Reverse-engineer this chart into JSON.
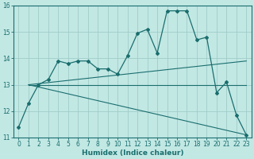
{
  "xlabel": "Humidex (Indice chaleur)",
  "xlim": [
    -0.5,
    23.5
  ],
  "ylim": [
    11,
    16
  ],
  "yticks": [
    11,
    12,
    13,
    14,
    15,
    16
  ],
  "xticks": [
    0,
    1,
    2,
    3,
    4,
    5,
    6,
    7,
    8,
    9,
    10,
    11,
    12,
    13,
    14,
    15,
    16,
    17,
    18,
    19,
    20,
    21,
    22,
    23
  ],
  "bg_color": "#c2e8e4",
  "grid_color": "#a0ccc8",
  "line_color": "#1a6e6e",
  "line_main": {
    "x": [
      0,
      1,
      2,
      3,
      4,
      5,
      6,
      7,
      8,
      9,
      10,
      11,
      12,
      13,
      14,
      15,
      16,
      17,
      18,
      19,
      20,
      21,
      22,
      23
    ],
    "y": [
      11.4,
      12.3,
      13.0,
      13.2,
      13.9,
      13.8,
      13.9,
      13.9,
      13.6,
      13.6,
      13.4,
      14.1,
      14.95,
      15.1,
      14.2,
      15.8,
      15.8,
      15.8,
      14.7,
      14.8,
      12.7,
      13.1,
      11.85,
      11.1
    ]
  },
  "line_rising": {
    "x": [
      1,
      23
    ],
    "y": [
      13.0,
      13.9
    ]
  },
  "line_flat": {
    "x": [
      1,
      23
    ],
    "y": [
      13.0,
      13.0
    ]
  },
  "line_falling": {
    "x": [
      1,
      23
    ],
    "y": [
      13.0,
      11.1
    ]
  },
  "tick_fontsize": 5.5,
  "xlabel_fontsize": 6.5
}
